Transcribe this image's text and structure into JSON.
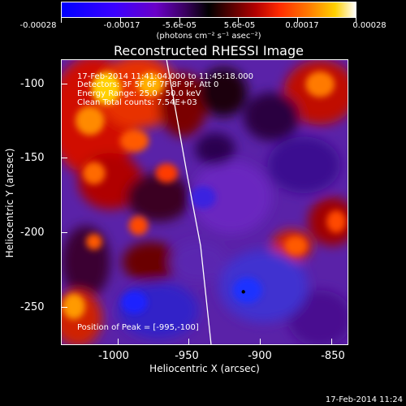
{
  "colorbar": {
    "tick_labels": [
      "-0.00028",
      "-0.00017",
      "-5.6e-05",
      "5.6e-05",
      "0.00017",
      "0.00028"
    ],
    "units": "(photons cm⁻² s⁻¹ asec⁻²)"
  },
  "title": "Reconstructed RHESSI Image",
  "info": {
    "time_range": "17-Feb-2014 11:41:04.000 to 11:45:18.000",
    "detectors": "Detectors: 3F 5F 6F 7F 8F 9F, Att 0",
    "energy": "Energy Range: 25.0 - 50.0 keV",
    "clean": "Clean    Total counts: 7.54E+03"
  },
  "peak_text": "Position of Peak = [-995,-100]",
  "axes": {
    "ylabel": "Heliocentric Y (arcsec)",
    "xlabel": "Heliocentric X (arcsec)",
    "yticks": [
      "-100",
      "-150",
      "-200",
      "-250"
    ],
    "xticks": [
      "-1000",
      "-950",
      "-900",
      "-850"
    ]
  },
  "timestamp": "17-Feb-2014 11:24",
  "colors": {
    "background": "#000000",
    "limb_line": "#ffffff"
  }
}
